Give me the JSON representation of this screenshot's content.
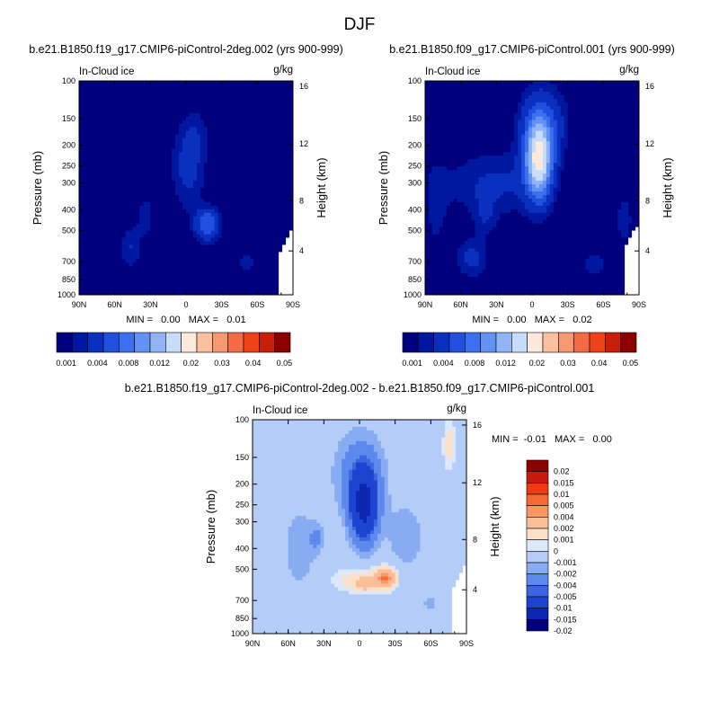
{
  "page_title": "DJF",
  "chart_data": [
    {
      "type": "contour",
      "title": "b.e21.B1850.f19_g17.CMIP6-piControl-2deg.002 (yrs 900-999)",
      "left_label": "In-Cloud ice",
      "units": "g/kg",
      "ylabel": "Pressure (mb)",
      "y2label": "Height (km)",
      "x_ticks": [
        "90N",
        "60N",
        "30N",
        "0",
        "30S",
        "60S",
        "90S"
      ],
      "y_ticks": [
        "100",
        "150",
        "200",
        "250",
        "300",
        "400",
        "500",
        "700",
        "850",
        "1000"
      ],
      "y2_ticks": [
        "16",
        "12",
        "8",
        "4"
      ],
      "min_max": "MIN =   0.00   MAX =   0.01",
      "colorbar_labels": [
        "0.001",
        "0.004",
        "0.008",
        "0.012",
        "0.02",
        "0.03",
        "0.04",
        "0.05"
      ],
      "contour_levels": [
        0.001,
        0.002,
        0.004,
        0.006,
        0.008,
        0.01,
        0.012,
        0.015,
        0.02,
        0.025,
        0.03,
        0.035,
        0.04,
        0.045,
        0.05
      ],
      "min": 0.0,
      "max": 0.01
    },
    {
      "type": "contour",
      "title": "b.e21.B1850.f09_g17.CMIP6-piControl.001 (yrs 900-999)",
      "left_label": "In-Cloud ice",
      "units": "g/kg",
      "ylabel": "Pressure (mb)",
      "y2label": "Height (km)",
      "x_ticks": [
        "90N",
        "60N",
        "30N",
        "0",
        "30S",
        "60S",
        "90S"
      ],
      "y_ticks": [
        "100",
        "150",
        "200",
        "250",
        "300",
        "400",
        "500",
        "700",
        "850",
        "1000"
      ],
      "y2_ticks": [
        "16",
        "12",
        "8",
        "4"
      ],
      "min_max": "MIN =   0.00   MAX =   0.02",
      "colorbar_labels": [
        "0.001",
        "0.004",
        "0.008",
        "0.012",
        "0.02",
        "0.03",
        "0.04",
        "0.05"
      ],
      "contour_levels": [
        0.001,
        0.002,
        0.004,
        0.006,
        0.008,
        0.01,
        0.012,
        0.015,
        0.02,
        0.025,
        0.03,
        0.035,
        0.04,
        0.045,
        0.05
      ],
      "min": 0.0,
      "max": 0.02
    },
    {
      "type": "contour",
      "title": "b.e21.B1850.f19_g17.CMIP6-piControl-2deg.002 - b.e21.B1850.f09_g17.CMIP6-piControl.001",
      "left_label": "In-Cloud ice",
      "units": "g/kg",
      "ylabel": "Pressure (mb)",
      "y2label": "Height (km)",
      "x_ticks": [
        "90N",
        "60N",
        "30N",
        "0",
        "30S",
        "60S",
        "90S"
      ],
      "y_ticks": [
        "100",
        "150",
        "200",
        "250",
        "300",
        "400",
        "500",
        "700",
        "850",
        "1000"
      ],
      "y2_ticks": [
        "16",
        "12",
        "8",
        "4"
      ],
      "min_max": "MIN =  -0.01   MAX =   0.00",
      "colorbar_labels": [
        "0.02",
        "0.015",
        "0.01",
        "0.005",
        "0.004",
        "0.002",
        "0.001",
        "0",
        "-0.001",
        "-0.002",
        "-0.004",
        "-0.005",
        "-0.01",
        "-0.015",
        "-0.02"
      ],
      "contour_levels": [
        -0.02,
        -0.015,
        -0.01,
        -0.005,
        -0.004,
        -0.002,
        -0.001,
        0,
        0.001,
        0.002,
        0.004,
        0.005,
        0.01,
        0.015,
        0.02
      ],
      "min": -0.01,
      "max": 0.0
    }
  ],
  "colors": {
    "seq": [
      "#00007f",
      "#0018a0",
      "#0a30c0",
      "#2050dc",
      "#3c70ee",
      "#6492f2",
      "#90b4f6",
      "#c8dcfc",
      "#fde8dc",
      "#fbc0a0",
      "#f89870",
      "#f46a44",
      "#ee4218",
      "#c82008",
      "#8c0000"
    ],
    "diff": [
      "#8c0000",
      "#c41c08",
      "#ec3a12",
      "#f76832",
      "#fa9664",
      "#fcbe98",
      "#fde0c8",
      "#dde9fb",
      "#b4cdf8",
      "#88acf2",
      "#5d88ec",
      "#3a66e0",
      "#1c44d0",
      "#0c26b0",
      "#000080"
    ]
  }
}
